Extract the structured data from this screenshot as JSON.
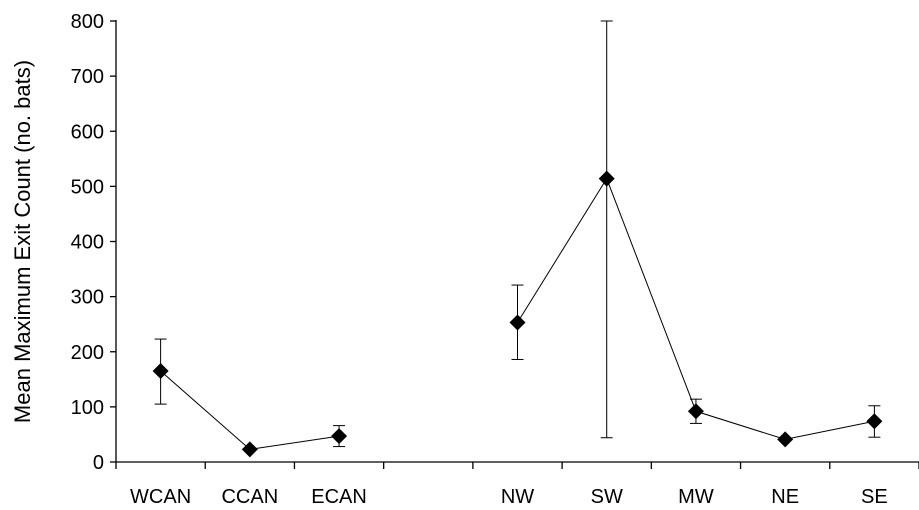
{
  "chart_data": {
    "type": "line",
    "title": "",
    "xlabel": "",
    "ylabel": "Mean Maximum Exit Count (no. bats)",
    "ylim": [
      0,
      800
    ],
    "y_ticks": [
      0,
      100,
      200,
      300,
      400,
      500,
      600,
      700,
      800
    ],
    "y_tick_labels": [
      "0",
      "100",
      "200",
      "300",
      "400",
      "500",
      "600",
      "700",
      "800"
    ],
    "categories": [
      "WCAN",
      "CCAN",
      "ECAN",
      "",
      "NW",
      "SW",
      "MW",
      "NE",
      "SE"
    ],
    "grid": false,
    "legend": "none",
    "marker": "diamond",
    "color": "#000000",
    "series": [
      {
        "segments": [
          {
            "points": [
              {
                "category": "WCAN",
                "value": 165,
                "err_low": 105,
                "err_high": 223
              },
              {
                "category": "CCAN",
                "value": 23,
                "err_low": 23,
                "err_high": 23
              },
              {
                "category": "ECAN",
                "value": 47,
                "err_low": 28,
                "err_high": 66
              }
            ]
          },
          {
            "points": [
              {
                "category": "NW",
                "value": 253,
                "err_low": 186,
                "err_high": 321
              },
              {
                "category": "SW",
                "value": 514,
                "err_low": 44,
                "err_high": 800
              },
              {
                "category": "MW",
                "value": 92,
                "err_low": 70,
                "err_high": 114
              },
              {
                "category": "NE",
                "value": 41,
                "err_low": 41,
                "err_high": 41
              },
              {
                "category": "SE",
                "value": 74,
                "err_low": 45,
                "err_high": 102
              }
            ]
          }
        ]
      }
    ]
  }
}
